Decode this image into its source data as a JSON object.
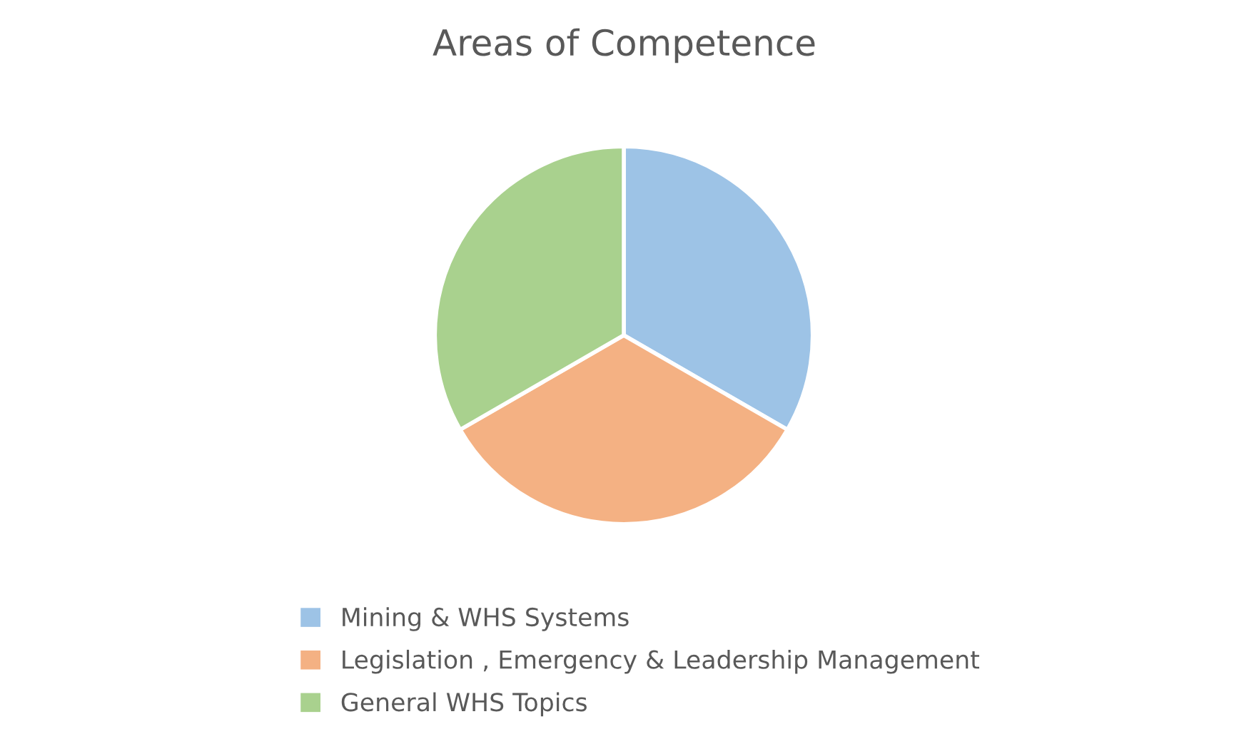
{
  "chart_data": {
    "type": "pie",
    "title": "Areas of Competence",
    "categories": [
      "Mining & WHS Systems",
      "Legislation , Emergency & Leadership Management",
      "General WHS Topics"
    ],
    "values": [
      33.33,
      33.34,
      33.33
    ],
    "colors": [
      "#9dc3e6",
      "#f4b183",
      "#a9d18e"
    ],
    "legend": "bottom"
  }
}
